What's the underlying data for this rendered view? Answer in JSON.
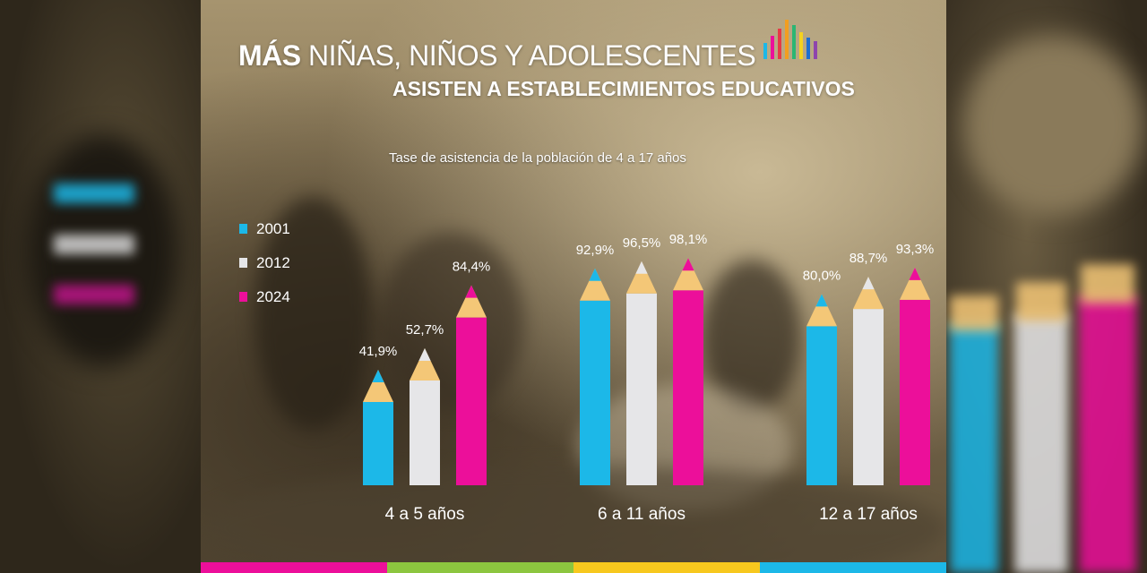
{
  "header": {
    "title_bold": "MÁS",
    "title_rest": " NIÑAS, NIÑOS Y ADOLESCENTES",
    "title_line2": "ASISTEN A ESTABLECIMIENTOS EDUCATIVOS",
    "subtitle": "Tase de asistencia  de la población de 4 a 17 años"
  },
  "colors": {
    "2001": "#1cb8e8",
    "2012": "#e6e6e8",
    "2024": "#ec0f9a",
    "pencil_wood": "#f4c777",
    "logo_bars": [
      "#1cb8e8",
      "#ec0f9a",
      "#e63946",
      "#f29e1f",
      "#2bb673",
      "#f4d21f",
      "#1d6fd1",
      "#8e44ad"
    ],
    "bottom_bar": [
      "#ec0f9a",
      "#8cc63f",
      "#f7c81e",
      "#1cb8e8"
    ]
  },
  "chart_data": {
    "type": "bar",
    "title": "Tase de asistencia  de la población de 4 a 17 años",
    "categories": [
      "4 a 5 años",
      "6 a 11 años",
      "12 a 17 años"
    ],
    "series": [
      {
        "name": "2001",
        "values": [
          41.9,
          92.9,
          80.0
        ],
        "labels": [
          "41,9%",
          "92,9%",
          "80,0%"
        ]
      },
      {
        "name": "2012",
        "values": [
          52.7,
          96.5,
          88.7
        ],
        "labels": [
          "52,7%",
          "96,5%",
          "88,7%"
        ]
      },
      {
        "name": "2024",
        "values": [
          84.4,
          98.1,
          93.3
        ],
        "labels": [
          "84,4%",
          "98,1%",
          "93,3%"
        ]
      }
    ],
    "legend_position": "left",
    "grid": false
  }
}
